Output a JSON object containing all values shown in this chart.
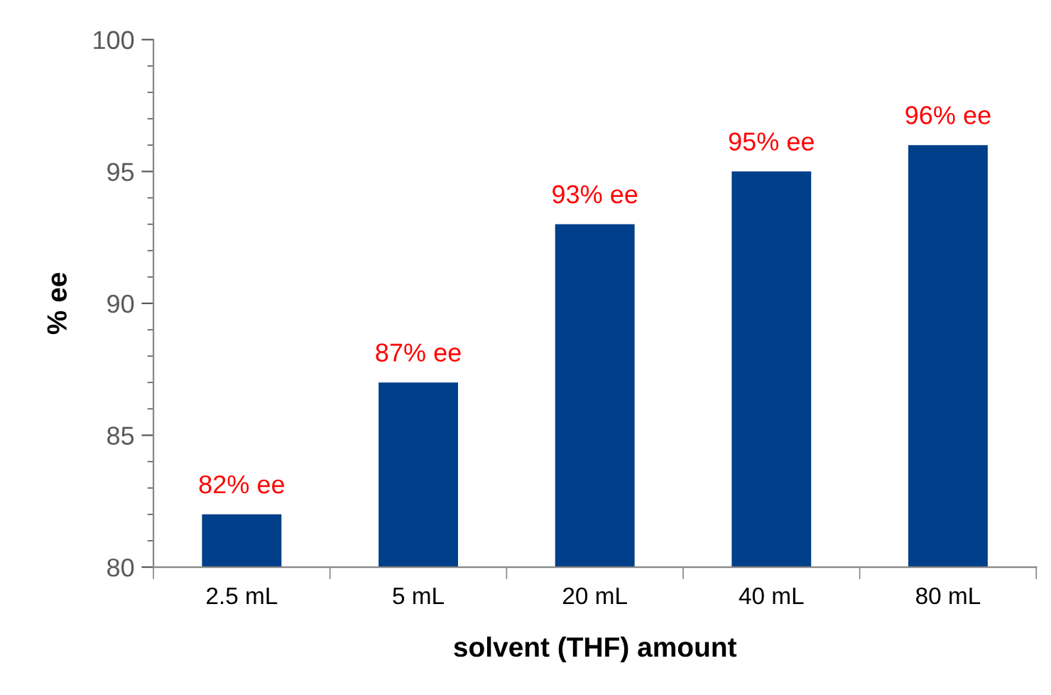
{
  "chart_data": {
    "type": "bar",
    "xlabel": "solvent (THF) amount",
    "ylabel": "% ee",
    "categories": [
      "2.5 mL",
      "5 mL",
      "20 mL",
      "40 mL",
      "80 mL"
    ],
    "values": [
      82,
      87,
      93,
      95,
      96
    ],
    "color": "#003f8a",
    "value_labels": [
      "82% ee",
      "87% ee",
      "93% ee",
      "95% ee",
      "96% ee"
    ],
    "ylim": [
      80,
      100
    ],
    "yticks": [
      80,
      {
        "value": 81,
        "label": null
      },
      {
        "value": 82,
        "label": null
      },
      {
        "value": 83,
        "label": null
      },
      {
        "value": 84,
        "label": null
      },
      85,
      {
        "value": 86,
        "label": null
      },
      {
        "value": 87,
        "label": null
      },
      {
        "value": 88,
        "label": null
      },
      {
        "value": 89,
        "label": null
      },
      90,
      {
        "value": 91,
        "label": null
      },
      {
        "value": 92,
        "label": null
      },
      {
        "value": 93,
        "label": null
      },
      {
        "value": 94,
        "label": null
      },
      95,
      {
        "value": 96,
        "label": null
      },
      {
        "value": 97,
        "label": null
      },
      {
        "value": 98,
        "label": null
      },
      {
        "value": 99,
        "label": null
      },
      100
    ],
    "grid": false,
    "legend": false
  }
}
